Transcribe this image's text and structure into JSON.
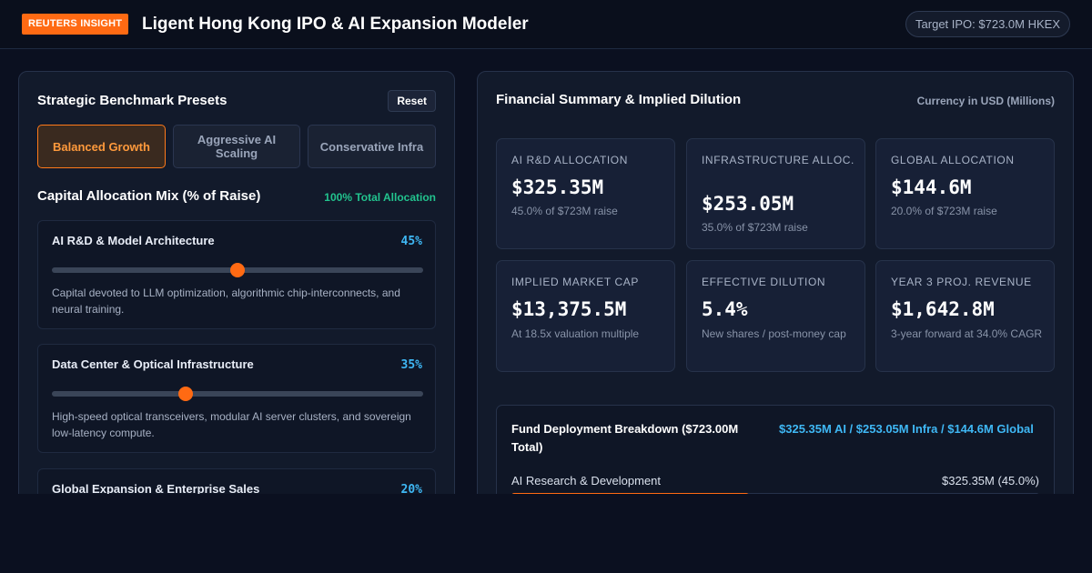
{
  "header": {
    "badge": "REUTERS INSIGHT",
    "title": "Ligent Hong Kong IPO & AI Expansion Modeler",
    "target": "Target IPO: $723.0M HKEX"
  },
  "left_panel": {
    "title": "Strategic Benchmark Presets",
    "reset_label": "Reset",
    "presets": [
      {
        "label": "Balanced Growth",
        "active": true
      },
      {
        "label": "Aggressive AI Scaling",
        "active": false
      },
      {
        "label": "Conservative Infra",
        "active": false
      }
    ],
    "mix_title": "Capital Allocation Mix (% of Raise)",
    "mix_total": "100% Total Allocation",
    "allocations": [
      {
        "name": "AI R&D & Model Architecture",
        "pct_label": "45%",
        "slider_fraction": 0.5,
        "description": "Capital devoted to LLM optimization, algorithmic chip-interconnects, and neural training."
      },
      {
        "name": "Data Center & Optical Infrastructure",
        "pct_label": "35%",
        "slider_fraction": 0.36,
        "description": "High-speed optical transceivers, modular AI server clusters, and sovereign low-latency compute."
      },
      {
        "name": "Global Expansion & Enterprise Sales",
        "pct_label": "20%",
        "slider_fraction": 0.2,
        "description": ""
      }
    ]
  },
  "right_panel": {
    "title": "Financial Summary & Implied Dilution",
    "currency_note": "Currency in USD (Millions)",
    "metrics": [
      {
        "label": "AI R&D Allocation",
        "value": "$325.35M",
        "sub": "45.0% of $723M raise"
      },
      {
        "label": "Infrastructure Alloc.",
        "value": "$253.05M",
        "sub": "35.0% of $723M raise"
      },
      {
        "label": "Global Allocation",
        "value": "$144.6M",
        "sub": "20.0% of $723M raise"
      },
      {
        "label": "Implied Market Cap",
        "value": "$13,375.5M",
        "sub": "At 18.5x valuation multiple"
      },
      {
        "label": "Effective Dilution",
        "value": "5.4%",
        "sub": "New shares / post-money cap"
      },
      {
        "label": "Year 3 Proj. Revenue",
        "value": "$1,642.8M",
        "sub": "3-year forward at 34.0% CAGR"
      }
    ],
    "breakdown": {
      "title": "Fund Deployment Breakdown ($723.00M Total)",
      "summary": "$325.35M AI / $253.05M Infra / $144.6M Global",
      "rows": [
        {
          "label": "AI Research & Development",
          "value": "$325.35M (45.0%)",
          "fraction": 0.45
        }
      ]
    }
  },
  "colors": {
    "accent_orange": "#ff6a13",
    "accent_blue": "#3fb8f5",
    "accent_green": "#22c38e",
    "background": "#0b1020"
  }
}
